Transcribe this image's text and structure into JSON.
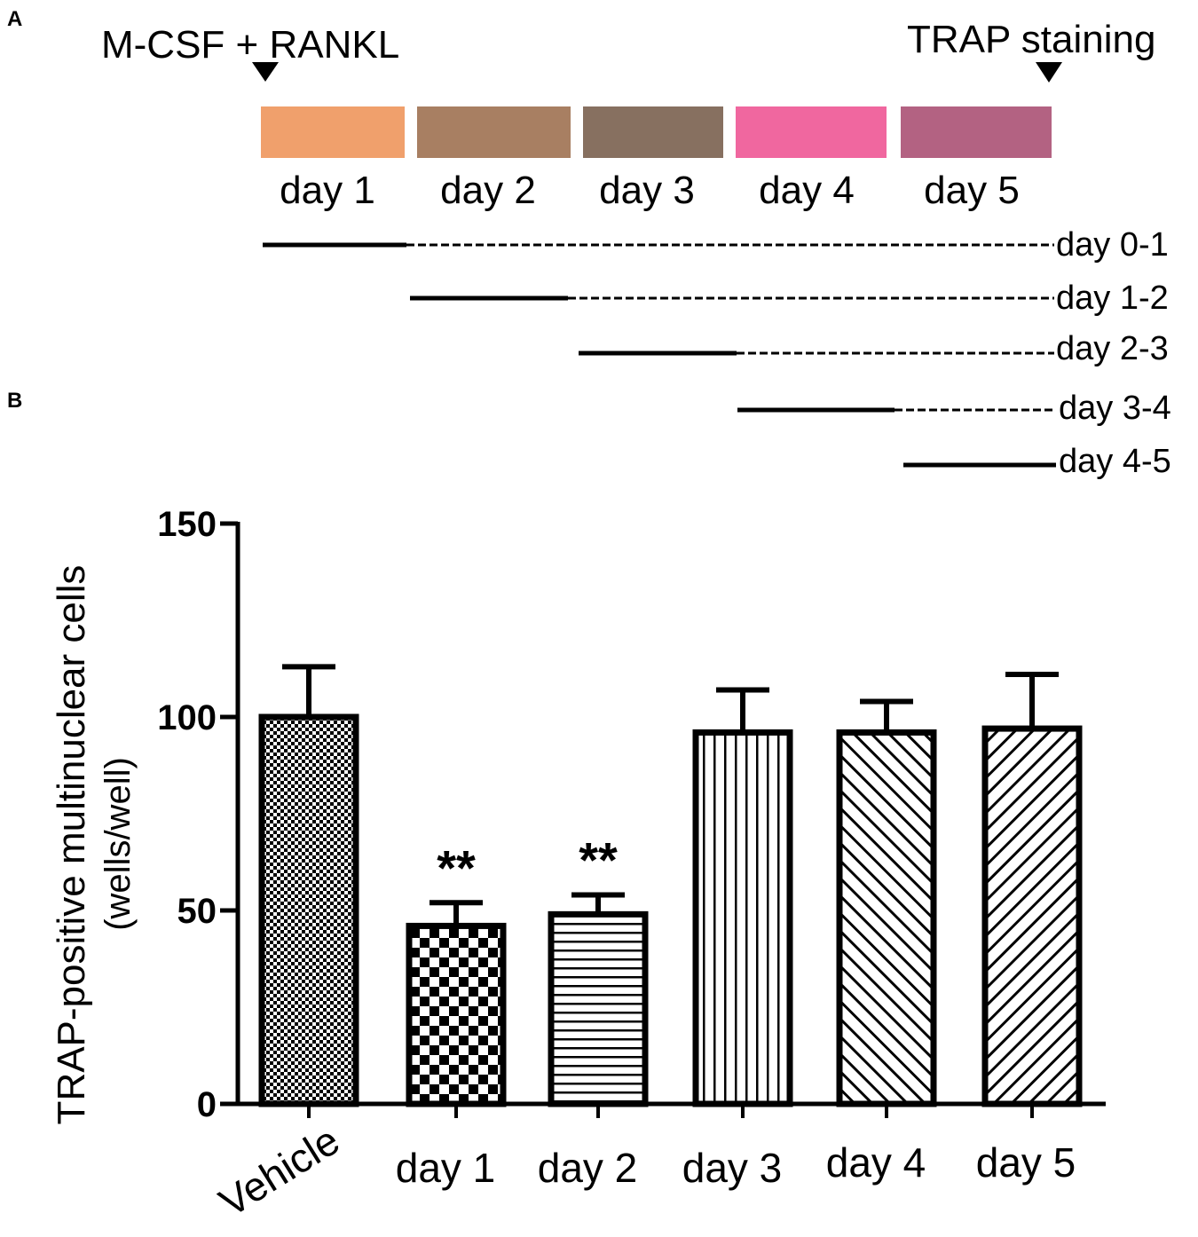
{
  "panel_a": {
    "label": "A",
    "treatment_label": "M-CSF + RANKL",
    "staining_label": "TRAP staining",
    "days": [
      {
        "label": "day 1",
        "color": "#F0A06C"
      },
      {
        "label": "day 2",
        "color": "#A87F62"
      },
      {
        "label": "day 3",
        "color": "#877060"
      },
      {
        "label": "day 4",
        "color": "#F0679F"
      },
      {
        "label": "day 5",
        "color": "#B36282"
      }
    ],
    "periods": [
      {
        "label": "day 0-1",
        "start_day": 0,
        "end_day": 1
      },
      {
        "label": "day 1-2",
        "start_day": 1,
        "end_day": 2
      },
      {
        "label": "day 2-3",
        "start_day": 2,
        "end_day": 3
      },
      {
        "label": "day 3-4",
        "start_day": 3,
        "end_day": 4
      },
      {
        "label": "day 4-5",
        "start_day": 4,
        "end_day": 5
      }
    ]
  },
  "panel_b": {
    "label": "B"
  },
  "chart_data": {
    "type": "bar",
    "title": "",
    "categories": [
      "Vehicle",
      "day 1",
      "day 2",
      "day 3",
      "day 4",
      "day 5"
    ],
    "values": [
      100,
      46,
      49,
      96,
      96,
      97
    ],
    "error_upper": [
      13,
      6,
      5,
      11,
      8,
      14
    ],
    "significance": [
      "",
      "**",
      "**",
      "",
      "",
      ""
    ],
    "patterns": [
      "fine-checker",
      "checker",
      "horizontal",
      "vertical",
      "diag-up",
      "diag-down"
    ],
    "ylabel_line1": "TRAP-positive multinuclear cells",
    "ylabel_line2": "(wells/well)",
    "xlabel": "",
    "ylim": [
      0,
      150
    ],
    "yticks": [
      "0",
      "50",
      "100",
      "150"
    ]
  }
}
